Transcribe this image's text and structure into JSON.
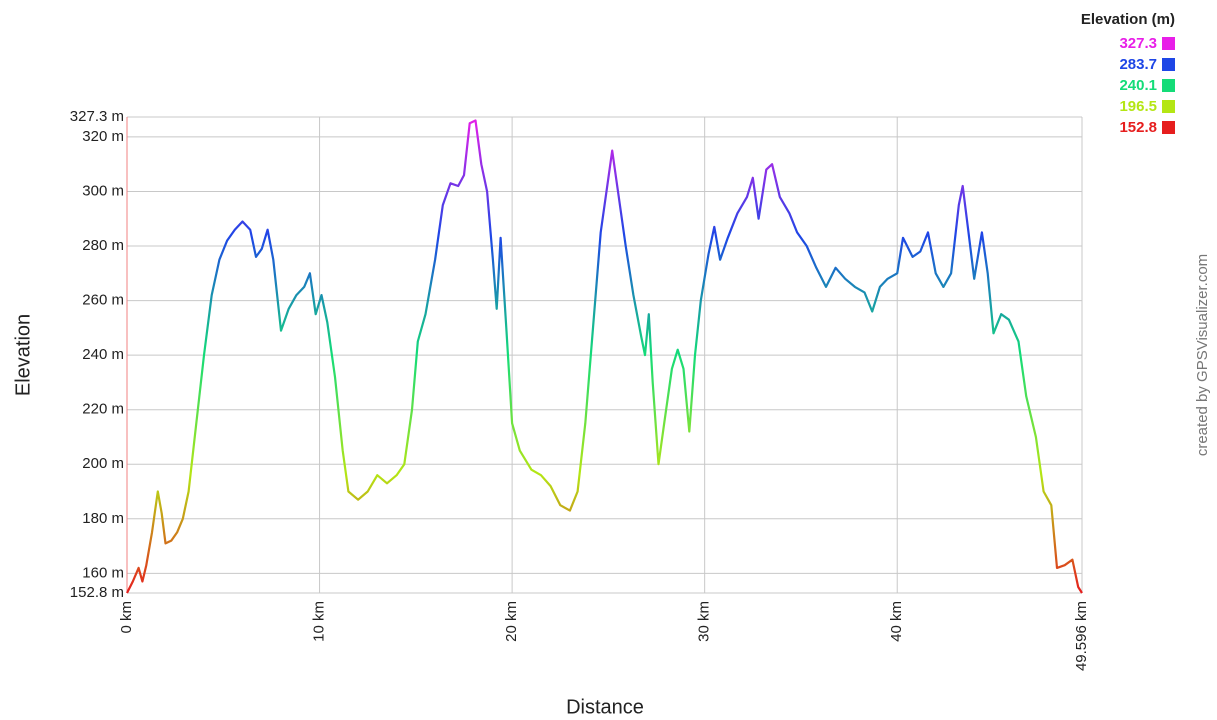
{
  "chart_data": {
    "type": "line",
    "x_label": "Distance",
    "y_label": "Elevation",
    "credit": "created by GPSVisualizer.com",
    "legend": {
      "title": "Elevation (m)",
      "items": [
        {
          "value": 327.3,
          "color": "#e81ee8"
        },
        {
          "value": 283.7,
          "color": "#1e46e6"
        },
        {
          "value": 240.1,
          "color": "#14dc78"
        },
        {
          "value": 196.5,
          "color": "#b4e614"
        },
        {
          "value": 152.8,
          "color": "#e61e1e"
        }
      ]
    },
    "x": [
      0,
      0.3,
      0.6,
      0.8,
      1.0,
      1.3,
      1.6,
      1.8,
      2.0,
      2.3,
      2.6,
      2.9,
      3.2,
      3.6,
      4.0,
      4.4,
      4.8,
      5.2,
      5.6,
      6.0,
      6.4,
      6.7,
      7.0,
      7.3,
      7.6,
      8.0,
      8.4,
      8.8,
      9.2,
      9.5,
      9.8,
      10.1,
      10.4,
      10.8,
      11.2,
      11.5,
      12.0,
      12.5,
      13.0,
      13.5,
      14.0,
      14.4,
      14.8,
      15.1,
      15.5,
      16.0,
      16.4,
      16.8,
      17.2,
      17.5,
      17.8,
      18.1,
      18.4,
      18.7,
      19.0,
      19.2,
      19.4,
      19.7,
      20.0,
      20.4,
      21.0,
      21.5,
      22.0,
      22.5,
      23.0,
      23.4,
      23.8,
      24.2,
      24.6,
      25.0,
      25.2,
      25.5,
      25.9,
      26.3,
      26.7,
      26.9,
      27.1,
      27.3,
      27.6,
      27.9,
      28.3,
      28.6,
      28.9,
      29.2,
      29.5,
      29.8,
      30.2,
      30.5,
      30.8,
      31.2,
      31.7,
      32.2,
      32.5,
      32.8,
      33.2,
      33.5,
      33.9,
      34.4,
      34.8,
      35.3,
      35.8,
      36.3,
      36.8,
      37.3,
      37.8,
      38.3,
      38.7,
      39.1,
      39.5,
      40.0,
      40.3,
      40.8,
      41.2,
      41.6,
      42.0,
      42.4,
      42.8,
      43.2,
      43.4,
      43.7,
      44.0,
      44.4,
      44.7,
      45.0,
      45.4,
      45.8,
      46.3,
      46.7,
      47.2,
      47.6,
      48.0,
      48.3,
      48.7,
      49.1,
      49.4,
      49.596
    ],
    "values": [
      152.8,
      157,
      162,
      157,
      163,
      175,
      190,
      182,
      171,
      172,
      175,
      180,
      190,
      215,
      240,
      262,
      275,
      282,
      286,
      289,
      286,
      276,
      279,
      286,
      275,
      249,
      257,
      262,
      265,
      270,
      255,
      262,
      252,
      232,
      205,
      190,
      187,
      190,
      196,
      193,
      196,
      200,
      220,
      245,
      255,
      275,
      295,
      303,
      302,
      306,
      325,
      326,
      310,
      300,
      275,
      257,
      283,
      250,
      215,
      205,
      198,
      196,
      192,
      185,
      183,
      190,
      215,
      250,
      285,
      305,
      315,
      300,
      280,
      262,
      247,
      240,
      255,
      230,
      200,
      215,
      235,
      242,
      235,
      212,
      240,
      260,
      277,
      287,
      275,
      283,
      292,
      298,
      305,
      290,
      308,
      310,
      298,
      292,
      285,
      280,
      272,
      265,
      272,
      268,
      265,
      263,
      256,
      265,
      268,
      270,
      283,
      276,
      278,
      285,
      270,
      265,
      270,
      295,
      302,
      285,
      268,
      285,
      270,
      248,
      255,
      253,
      245,
      225,
      210,
      190,
      185,
      162,
      163,
      165,
      155,
      152.8
    ],
    "xlim": [
      0,
      49.596
    ],
    "ylim": [
      152.8,
      327.3
    ],
    "xticks": [
      {
        "value": 0,
        "label": "0 km"
      },
      {
        "value": 10,
        "label": "10 km"
      },
      {
        "value": 20,
        "label": "20 km"
      },
      {
        "value": 30,
        "label": "30 km"
      },
      {
        "value": 40,
        "label": "40 km"
      },
      {
        "value": 49.596,
        "label": "49.596 km"
      }
    ],
    "yticks": [
      {
        "value": 152.8,
        "label": "152.8 m"
      },
      {
        "value": 160,
        "label": "160 m"
      },
      {
        "value": 180,
        "label": "180 m"
      },
      {
        "value": 200,
        "label": "200 m"
      },
      {
        "value": 220,
        "label": "220 m"
      },
      {
        "value": 240,
        "label": "240 m"
      },
      {
        "value": 260,
        "label": "260 m"
      },
      {
        "value": 280,
        "label": "280 m"
      },
      {
        "value": 300,
        "label": "300 m"
      },
      {
        "value": 320,
        "label": "320 m"
      },
      {
        "value": 327.3,
        "label": "327.3 m"
      }
    ],
    "grid": true
  }
}
